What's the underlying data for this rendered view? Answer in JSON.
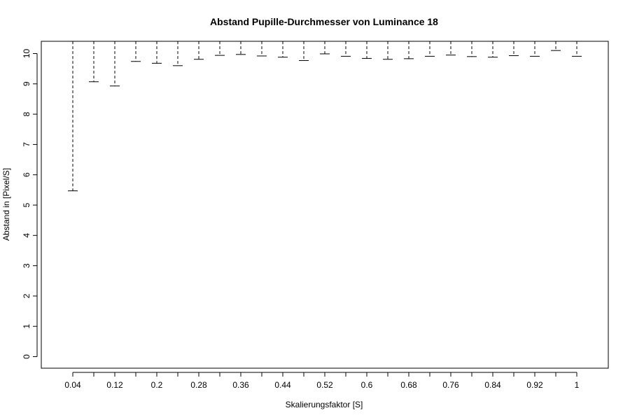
{
  "chart_data": {
    "type": "boxplot",
    "title": "Abstand Pupille-Durchmesser von Luminance 18",
    "xlabel": "Skalierungsfaktor [S]",
    "ylabel": "Abstand in [Pixel/S]",
    "ylim": [
      0,
      10.4
    ],
    "yticks": [
      0,
      1,
      2,
      3,
      4,
      5,
      6,
      7,
      8,
      9,
      10
    ],
    "x": [
      0.04,
      0.08,
      0.12,
      0.16,
      0.2,
      0.24,
      0.28,
      0.32,
      0.36,
      0.4,
      0.44,
      0.48,
      0.52,
      0.56,
      0.6,
      0.64,
      0.68,
      0.72,
      0.76,
      0.8,
      0.84,
      0.88,
      0.92,
      0.96,
      1
    ],
    "xtick_labels": [
      "0.04",
      "0.12",
      "0.2",
      "0.28",
      "0.36",
      "0.44",
      "0.52",
      "0.6",
      "0.68",
      "0.76",
      "0.84",
      "0.92",
      "1"
    ],
    "lower_whisker": [
      5.47,
      9.07,
      8.93,
      9.74,
      9.68,
      9.6,
      9.81,
      9.94,
      9.97,
      9.92,
      9.88,
      9.77,
      9.99,
      9.91,
      9.84,
      9.81,
      9.83,
      9.91,
      9.95,
      9.9,
      9.88,
      9.93,
      9.91,
      10.1,
      9.91
    ],
    "upper_whisker": [
      10.4,
      10.4,
      10.4,
      10.4,
      10.4,
      10.4,
      10.4,
      10.4,
      10.4,
      10.4,
      10.4,
      10.4,
      10.4,
      10.4,
      10.4,
      10.4,
      10.4,
      10.4,
      10.4,
      10.4,
      10.4,
      10.4,
      10.4,
      10.4,
      10.4
    ]
  }
}
